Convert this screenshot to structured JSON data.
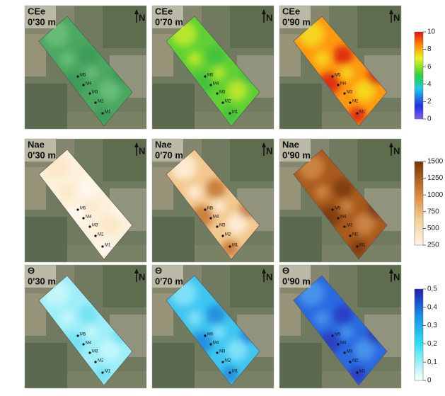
{
  "rows": [
    {
      "variable": "CEe",
      "depths": [
        "0'30 m",
        "0'70 m",
        "0'90 m"
      ],
      "colorbar": {
        "lim": [
          0,
          10
        ],
        "ticks": [
          0,
          2,
          4,
          6,
          8,
          10
        ]
      }
    },
    {
      "variable": "Nae",
      "depths": [
        "0'30 m",
        "0'70 m",
        "0'90 m"
      ],
      "colorbar": {
        "lim": [
          250,
          1500
        ],
        "ticks": [
          250,
          500,
          750,
          1000,
          1250,
          1500
        ]
      }
    },
    {
      "variable": "Θ",
      "depths": [
        "0'30 m",
        "0'70 m",
        "0'90 m"
      ],
      "colorbar": {
        "lim": [
          0,
          0.5
        ],
        "ticks": [
          0,
          {
            "value": 0.1,
            "label": "0,1"
          },
          {
            "value": 0.2,
            "label": "0,2"
          },
          {
            "value": 0.3,
            "label": "0,3"
          },
          {
            "value": 0.4,
            "label": "0,4"
          },
          {
            "value": 0.5,
            "label": "0,5"
          }
        ]
      }
    }
  ],
  "points": [
    "M5",
    "M4",
    "M3",
    "M2",
    "M1"
  ],
  "north": "N"
}
